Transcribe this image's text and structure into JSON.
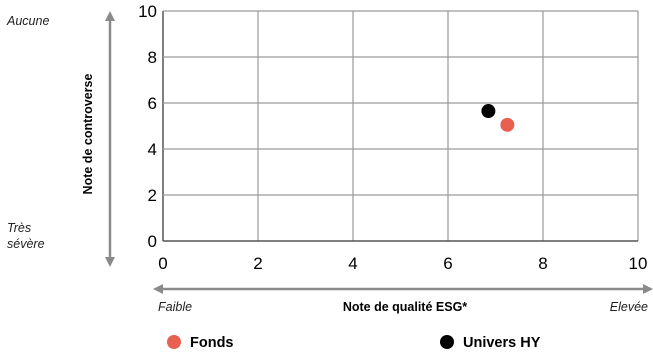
{
  "chart_data": {
    "type": "scatter",
    "title": "",
    "xlabel": "Note de qualité ESG*",
    "ylabel": "Note de controverse",
    "xlim": [
      0,
      10
    ],
    "ylim": [
      0,
      10
    ],
    "xticks": [
      "0",
      "2",
      "4",
      "6",
      "8",
      "10"
    ],
    "yticks": [
      "0",
      "2",
      "4",
      "6",
      "8",
      "10"
    ],
    "grid": true,
    "x_axis_ends": {
      "left": "Faible",
      "right": "Elevée"
    },
    "y_axis_ends": {
      "top": "Aucune",
      "bottom_line1": "Très",
      "bottom_line2": "sévère"
    },
    "legend_placement": "bottom",
    "series": [
      {
        "name": "Fonds",
        "color": "#E8604F",
        "points": [
          {
            "x": 7.25,
            "y": 5.05
          }
        ]
      },
      {
        "name": "Univers HY",
        "color": "#000000",
        "points": [
          {
            "x": 6.85,
            "y": 5.65
          }
        ]
      }
    ]
  }
}
